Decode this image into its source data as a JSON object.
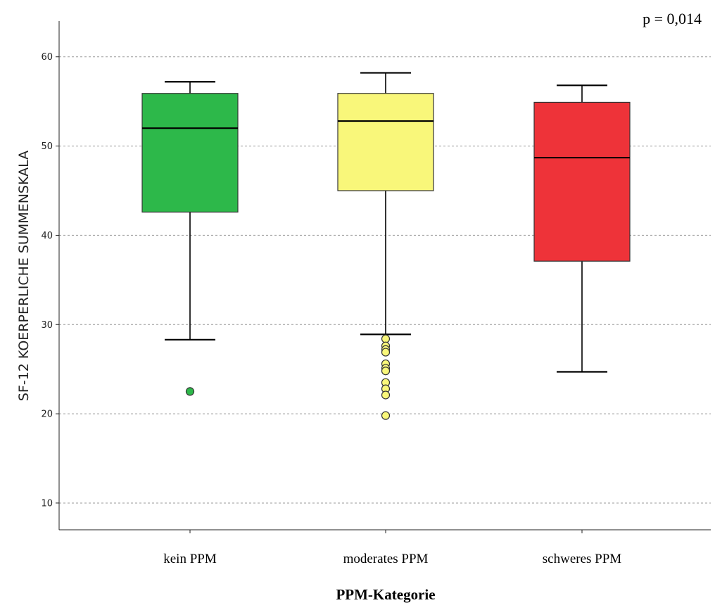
{
  "chart_data": {
    "type": "box",
    "annotation": "p = 0,014",
    "xlabel": "PPM-Kategorie",
    "ylabel": "SF-12 KOERPERLICHE SUMMENSKALA",
    "ylim": [
      7,
      64
    ],
    "yticks": [
      10,
      20,
      30,
      40,
      50,
      60
    ],
    "grid": true,
    "categories": [
      "kein PPM",
      "moderates PPM",
      "schweres PPM"
    ],
    "boxes": [
      {
        "category": "kein PPM",
        "color": "#2db84a",
        "whisker_low": 28.3,
        "q1": 42.6,
        "median": 52.0,
        "q3": 55.9,
        "whisker_high": 57.2,
        "outliers": [
          22.5
        ]
      },
      {
        "category": "moderates PPM",
        "color": "#f9f77a",
        "whisker_low": 28.9,
        "q1": 45.0,
        "median": 52.8,
        "q3": 55.9,
        "whisker_high": 58.2,
        "outliers": [
          28.4,
          27.6,
          27.2,
          26.9,
          25.6,
          25.1,
          24.8,
          23.5,
          22.8,
          22.1,
          19.8
        ]
      },
      {
        "category": "schweres PPM",
        "color": "#ee3339",
        "whisker_low": 24.7,
        "q1": 37.1,
        "median": 48.7,
        "q3": 54.9,
        "whisker_high": 56.8,
        "outliers": []
      }
    ]
  }
}
